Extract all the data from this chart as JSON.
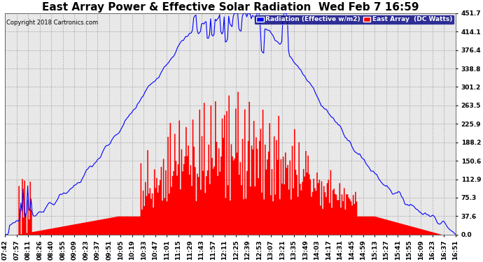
{
  "title": "East Array Power & Effective Solar Radiation  Wed Feb 7 16:59",
  "copyright": "Copyright 2018 Cartronics.com",
  "legend_blue": "Radiation (Effective w/m2)",
  "legend_red": "East Array  (DC Watts)",
  "ymin": 0.0,
  "ymax": 451.7,
  "yticks": [
    0.0,
    37.6,
    75.3,
    112.9,
    150.6,
    188.2,
    225.9,
    263.5,
    301.2,
    338.8,
    376.4,
    414.1,
    451.7
  ],
  "background_color": "#ffffff",
  "plot_bg_color": "#e8e8e8",
  "grid_color": "#aaaaaa",
  "blue_color": "#0000ff",
  "red_color": "#ff0000",
  "title_fontsize": 11,
  "tick_fontsize": 6.5,
  "x_tick_labels": [
    "07:42",
    "07:57",
    "08:11",
    "08:26",
    "08:40",
    "08:55",
    "09:09",
    "09:23",
    "09:37",
    "09:51",
    "10:05",
    "10:19",
    "10:33",
    "10:47",
    "11:01",
    "11:15",
    "11:29",
    "11:43",
    "11:57",
    "12:11",
    "12:25",
    "12:39",
    "12:53",
    "13:07",
    "13:21",
    "13:35",
    "13:49",
    "14:03",
    "14:17",
    "14:31",
    "14:45",
    "14:59",
    "15:13",
    "15:27",
    "15:41",
    "15:55",
    "16:09",
    "16:23",
    "16:37",
    "16:51"
  ],
  "n_points": 400
}
